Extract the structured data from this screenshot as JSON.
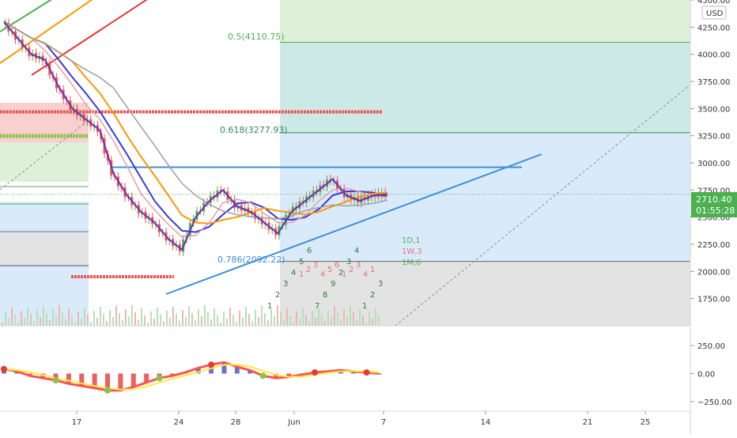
{
  "currency": "USD",
  "price_label": {
    "price": "2710.40",
    "countdown": "01:55:28"
  },
  "colors": {
    "upper_zone": "#dff0d8",
    "teal_zone": "#cde9e6",
    "blue_zone": "#d9ebfb",
    "grey_zone": "#e3e3e3",
    "red_zone": "#f8d0d0",
    "green_zone": "#dff0d8",
    "price_tag": "#4caf50",
    "countdown_tag": "#4caf50",
    "bull": "#4caf50",
    "bear": "#ef5350",
    "ma_purple": "#6a2fb5",
    "ma_blue": "#3a3ad8",
    "ma_orange": "#ff9800",
    "ma_pink": "#e8a0a0",
    "ma_grey": "#9e9e9e",
    "trend_blue": "#3d8fd6"
  },
  "annotations": {
    "fib_05": "0.5(4110.75)",
    "fib_0618": "0.618(3277.93)",
    "fib_0786": "0.786(2092.22)",
    "tf_1d": "1D,1",
    "tf_1w": "1W,3",
    "tf_1m": "1M,6",
    "labels_green": [
      "1",
      "2",
      "3",
      "4",
      "5",
      "6",
      "7",
      "8",
      "9",
      "2",
      "3",
      "4",
      "1",
      "2",
      "3"
    ],
    "labels_red": [
      "1",
      "2",
      "3",
      "4",
      "5",
      "6",
      "1",
      "2",
      "3",
      "4",
      "1"
    ]
  },
  "chart_data": [
    {
      "type": "line",
      "title": "",
      "y_axis": {
        "min": 1500,
        "max": 4500,
        "ticks": [
          1750,
          2000,
          2250,
          2500,
          2750,
          3000,
          3250,
          3500,
          3750,
          4000,
          4250,
          4500
        ],
        "tick_labels": [
          "1750.00",
          "2000.00",
          "2250.00",
          "2500.00",
          "2750.00",
          "3000.00",
          "3250.00",
          "3500.00",
          "3750.00",
          "4000.00",
          "4250.00",
          "4500.00"
        ]
      },
      "x_axis": {
        "tick_labels": [
          "17",
          "24",
          "28",
          "Jun",
          "7",
          "14",
          "21",
          "25"
        ]
      },
      "series": [
        {
          "values": [
            4300,
            4150,
            4000,
            3950,
            3700,
            3500,
            3400,
            3300,
            2900,
            2700,
            2550,
            2450,
            2300,
            2200,
            2500,
            2650,
            2750,
            2600,
            2550,
            2450,
            2350,
            2550,
            2650,
            2750,
            2850,
            2700,
            2650,
            2700,
            2710
          ]
        }
      ],
      "key_levels": [
        {
          "label": "0.5(4110.75)",
          "value": 4110.75
        },
        {
          "label": "0.618(3277.93)",
          "value": 3277.93
        },
        {
          "label": "0.786(2092.22)",
          "value": 2092.22
        },
        {
          "value": 3470
        },
        {
          "value": 2960
        },
        {
          "value": 2710.4
        }
      ],
      "grid": false
    },
    {
      "type": "bar",
      "title": "",
      "y_axis": {
        "min": -300,
        "max": 300,
        "ticks": [
          -250,
          0,
          250
        ],
        "tick_labels": [
          "−250.00",
          "0.00",
          "250.00"
        ]
      },
      "values": [
        40,
        20,
        -20,
        -40,
        -60,
        -90,
        -110,
        -130,
        -150,
        -150,
        -120,
        -80,
        -40,
        -20,
        10,
        50,
        80,
        100,
        60,
        30,
        -20,
        -40,
        -30,
        -10,
        10,
        20,
        30,
        20,
        10,
        0
      ],
      "grid": false
    }
  ]
}
